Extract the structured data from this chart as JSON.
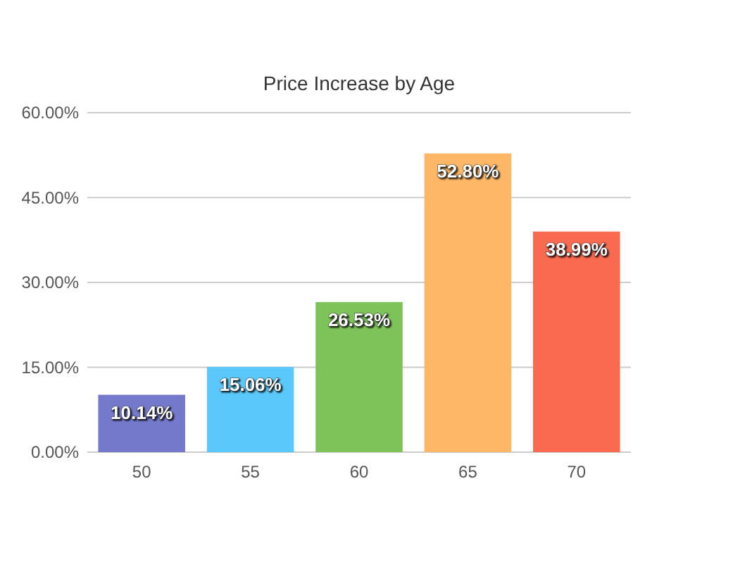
{
  "chart_data": {
    "type": "bar",
    "title": "Price Increase by Age",
    "categories": [
      "50",
      "55",
      "60",
      "65",
      "70"
    ],
    "values": [
      10.14,
      15.06,
      26.53,
      52.8,
      38.99
    ],
    "colors": [
      "#7479cb",
      "#5ac8fa",
      "#7dc35a",
      "#feb766",
      "#f96a50"
    ],
    "value_labels": [
      "10.14%",
      "15.06%",
      "26.53%",
      "52.80%",
      "38.99%"
    ],
    "ylim": [
      0,
      60
    ],
    "yticks": [
      {
        "value": 0,
        "label": "0.00%"
      },
      {
        "value": 15,
        "label": "15.00%"
      },
      {
        "value": 30,
        "label": "30.00%"
      },
      {
        "value": 45,
        "label": "45.00%"
      },
      {
        "value": 60,
        "label": "60.00%"
      }
    ],
    "grid": "y"
  }
}
